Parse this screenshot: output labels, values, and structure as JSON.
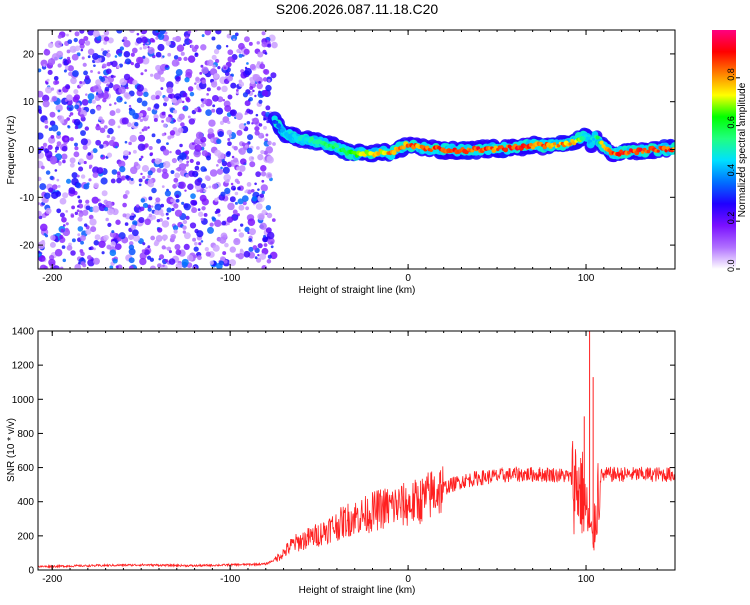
{
  "title": "S206.2026.087.11.18.C20",
  "chart_data": [
    {
      "type": "heatmap",
      "title": "S206.2026.087.11.18.C20",
      "xlabel": "Height of straight line (km)",
      "ylabel": "Frequency (Hz)",
      "xlim": [
        -208,
        150
      ],
      "ylim": [
        -25,
        25
      ],
      "xticks": [
        "-200",
        "-100",
        "0",
        "100"
      ],
      "yticks": [
        "-20",
        "-10",
        "0",
        "10",
        "20"
      ],
      "colorbar": {
        "label": "Normalized spectral amplitude",
        "range": [
          0.0,
          1.0
        ],
        "ticks": [
          "0.0",
          "0.2",
          "0.4",
          "0.6",
          "0.8"
        ],
        "colors": [
          "#ffffff",
          "#b070ff",
          "#7a10ff",
          "#2000ff",
          "#0070ff",
          "#00e0ff",
          "#20ff80",
          "#00ff00",
          "#ffff00",
          "#ff8000",
          "#ff0000",
          "#ff0080"
        ]
      },
      "ridge": {
        "x": [
          -75,
          -70,
          -65,
          -60,
          -55,
          -50,
          -45,
          -40,
          -35,
          -30,
          -25,
          -20,
          -15,
          -10,
          -5,
          0,
          10,
          20,
          30,
          40,
          50,
          60,
          70,
          80,
          90,
          95,
          100,
          103,
          105,
          110,
          115,
          120,
          130,
          140,
          150
        ],
        "y": [
          6.0,
          3.5,
          2.8,
          2.2,
          2.0,
          1.5,
          1.0,
          0.5,
          -0.5,
          -1.0,
          -0.8,
          -1.0,
          -0.5,
          -0.8,
          0.2,
          1.0,
          0.2,
          0.0,
          -0.3,
          0.0,
          0.2,
          0.4,
          0.8,
          0.8,
          1.2,
          2.0,
          3.0,
          1.0,
          2.8,
          0.5,
          -1.0,
          -0.5,
          -0.3,
          0.0,
          0.2
        ],
        "amplitude": [
          0.35,
          0.45,
          0.5,
          0.5,
          0.55,
          0.55,
          0.6,
          0.6,
          0.65,
          0.7,
          0.75,
          0.8,
          0.8,
          0.85,
          0.85,
          0.9,
          0.9,
          0.95,
          0.9,
          0.95,
          0.9,
          0.95,
          0.9,
          0.9,
          0.85,
          0.8,
          0.5,
          0.45,
          0.5,
          0.85,
          0.9,
          0.95,
          0.95,
          0.95,
          0.9
        ]
      },
      "noise_region_x": [
        -208,
        -75
      ]
    },
    {
      "type": "line",
      "xlabel": "Height of straight line (km)",
      "ylabel": "SNR (10 * v/v)",
      "xlim": [
        -208,
        150
      ],
      "ylim": [
        0,
        1400
      ],
      "xticks": [
        "-200",
        "-100",
        "0",
        "100"
      ],
      "yticks": [
        "0",
        "200",
        "400",
        "600",
        "800",
        "1000",
        "1200",
        "1400"
      ],
      "series": [
        {
          "name": "SNR",
          "color": "#ff2020",
          "x": [
            -208,
            -180,
            -150,
            -120,
            -100,
            -80,
            -75,
            -70,
            -65,
            -60,
            -55,
            -50,
            -45,
            -40,
            -35,
            -30,
            -25,
            -20,
            -15,
            -10,
            -5,
            0,
            5,
            10,
            15,
            20,
            25,
            30,
            40,
            50,
            60,
            70,
            80,
            90,
            95,
            98,
            100,
            102,
            104,
            106,
            108,
            112,
            120,
            130,
            140,
            150
          ],
          "values": [
            20,
            25,
            30,
            25,
            30,
            35,
            60,
            100,
            150,
            170,
            190,
            210,
            240,
            260,
            290,
            310,
            320,
            340,
            360,
            370,
            380,
            380,
            400,
            420,
            460,
            480,
            500,
            520,
            540,
            550,
            560,
            560,
            560,
            550,
            500,
            450,
            350,
            250,
            150,
            400,
            550,
            560,
            560,
            560,
            560,
            560
          ]
        }
      ],
      "spikes": [
        {
          "x": 102,
          "y": 1400
        },
        {
          "x": 104,
          "y": 1130
        },
        {
          "x": 99,
          "y": 900
        }
      ]
    }
  ]
}
